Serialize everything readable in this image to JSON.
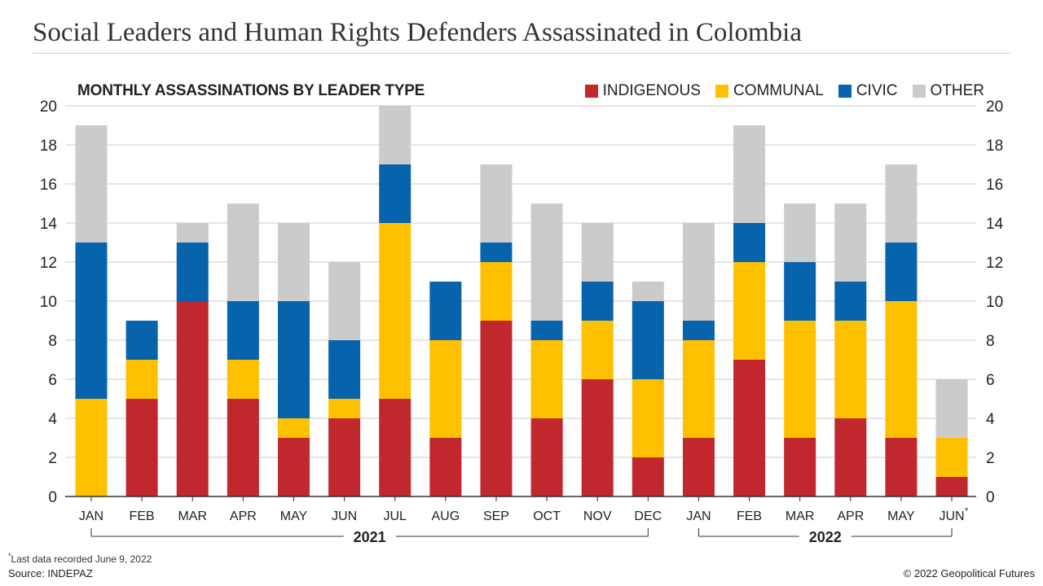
{
  "header": {
    "title": "Social Leaders and Human Rights Defenders Assassinated in Colombia"
  },
  "chart_data": {
    "type": "bar",
    "stacked": true,
    "title": "MONTHLY ASSASSINATIONS BY LEADER TYPE",
    "categories": [
      "JAN",
      "FEB",
      "MAR",
      "APR",
      "MAY",
      "JUN",
      "JUL",
      "AUG",
      "SEP",
      "OCT",
      "NOV",
      "DEC",
      "JAN",
      "FEB",
      "MAR",
      "APR",
      "MAY",
      "JUN"
    ],
    "category_marks": [
      "",
      "",
      "",
      "",
      "",
      "",
      "",
      "",
      "",
      "",
      "",
      "",
      "",
      "",
      "",
      "",
      "",
      "*"
    ],
    "year_groups": [
      {
        "label": "2021",
        "start": 0,
        "end": 11
      },
      {
        "label": "2022",
        "start": 12,
        "end": 17
      }
    ],
    "series": [
      {
        "name": "INDIGENOUS",
        "color": "#c0282d",
        "values": [
          0,
          5,
          10,
          5,
          3,
          4,
          5,
          3,
          9,
          4,
          6,
          2,
          3,
          7,
          3,
          4,
          3,
          1
        ]
      },
      {
        "name": "COMMUNAL",
        "color": "#ffc000",
        "values": [
          5,
          2,
          0,
          2,
          1,
          1,
          9,
          5,
          3,
          4,
          3,
          4,
          5,
          5,
          6,
          5,
          7,
          2
        ]
      },
      {
        "name": "CIVIC",
        "color": "#0863ad",
        "values": [
          8,
          2,
          3,
          3,
          6,
          3,
          3,
          3,
          1,
          1,
          2,
          4,
          1,
          2,
          3,
          2,
          3,
          0
        ]
      },
      {
        "name": "OTHER",
        "color": "#cbcbcb",
        "values": [
          6,
          0,
          1,
          5,
          4,
          4,
          3,
          0,
          4,
          6,
          3,
          1,
          5,
          5,
          3,
          4,
          4,
          3
        ]
      }
    ],
    "yticks": [
      0,
      2,
      4,
      6,
      8,
      10,
      12,
      14,
      16,
      18,
      20
    ],
    "ylim": [
      0,
      20
    ],
    "grid": true,
    "legend_position": "top-right"
  },
  "footer": {
    "footnote_mark": "*",
    "footnote": "Last data recorded June 9, 2022",
    "source": "Source: INDEPAZ",
    "copyright": "© 2022 Geopolitical Futures"
  }
}
